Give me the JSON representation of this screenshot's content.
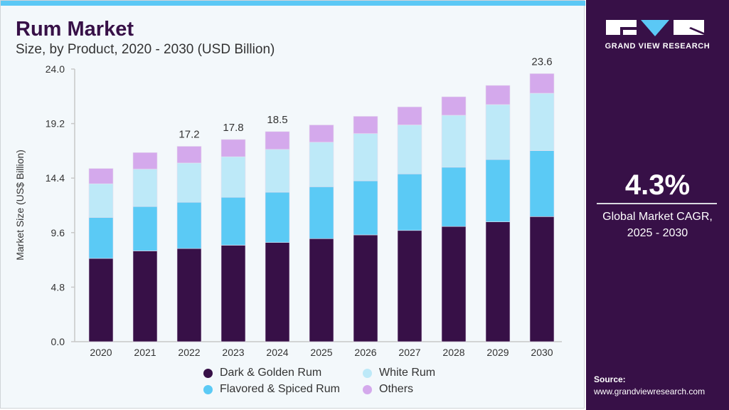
{
  "header": {
    "title": "Rum Market",
    "subtitle": "Size, by Product, 2020 - 2030 (USD Billion)"
  },
  "side_panel": {
    "logo_text": "GRAND VIEW RESEARCH",
    "cagr_value": "4.3%",
    "cagr_label_line1": "Global Market CAGR,",
    "cagr_label_line2": "2025 - 2030",
    "source_label": "Source:",
    "source_url": "www.grandviewresearch.com"
  },
  "colors": {
    "brand": "#371047",
    "accent": "#5bc8f5"
  },
  "chart_data": {
    "type": "bar",
    "stacked": true,
    "title": "Rum Market",
    "subtitle": "Size, by Product, 2020 - 2030 (USD Billion)",
    "xlabel": "",
    "ylabel": "Market Size (US$ Billion)",
    "ylim": [
      0,
      24
    ],
    "yticks": [
      "0.0",
      "4.8",
      "9.6",
      "14.4",
      "19.2",
      "24.0"
    ],
    "grid": false,
    "legend_position": "bottom",
    "categories": [
      "2020",
      "2021",
      "2022",
      "2023",
      "2024",
      "2025",
      "2026",
      "2027",
      "2028",
      "2029",
      "2030"
    ],
    "series": [
      {
        "name": "Dark & Golden Rum",
        "color": "#371047",
        "values": [
          7.33,
          7.99,
          8.2,
          8.49,
          8.73,
          9.07,
          9.4,
          9.79,
          10.14,
          10.55,
          11.01
        ]
      },
      {
        "name": "Flavored & Spiced Rum",
        "color": "#5bcaf5",
        "values": [
          3.61,
          3.91,
          4.07,
          4.22,
          4.43,
          4.57,
          4.76,
          4.98,
          5.22,
          5.49,
          5.81
        ]
      },
      {
        "name": "White Rum",
        "color": "#bde9f8",
        "values": [
          2.96,
          3.29,
          3.46,
          3.57,
          3.77,
          3.92,
          4.16,
          4.31,
          4.57,
          4.83,
          5.05
        ]
      },
      {
        "name": "Others",
        "color": "#d4a9ec",
        "values": [
          1.35,
          1.46,
          1.47,
          1.52,
          1.57,
          1.52,
          1.52,
          1.59,
          1.63,
          1.69,
          1.73
        ]
      }
    ],
    "data_labels": {
      "2022": "17.2",
      "2023": "17.8",
      "2024": "18.5",
      "2030": "23.6"
    }
  }
}
